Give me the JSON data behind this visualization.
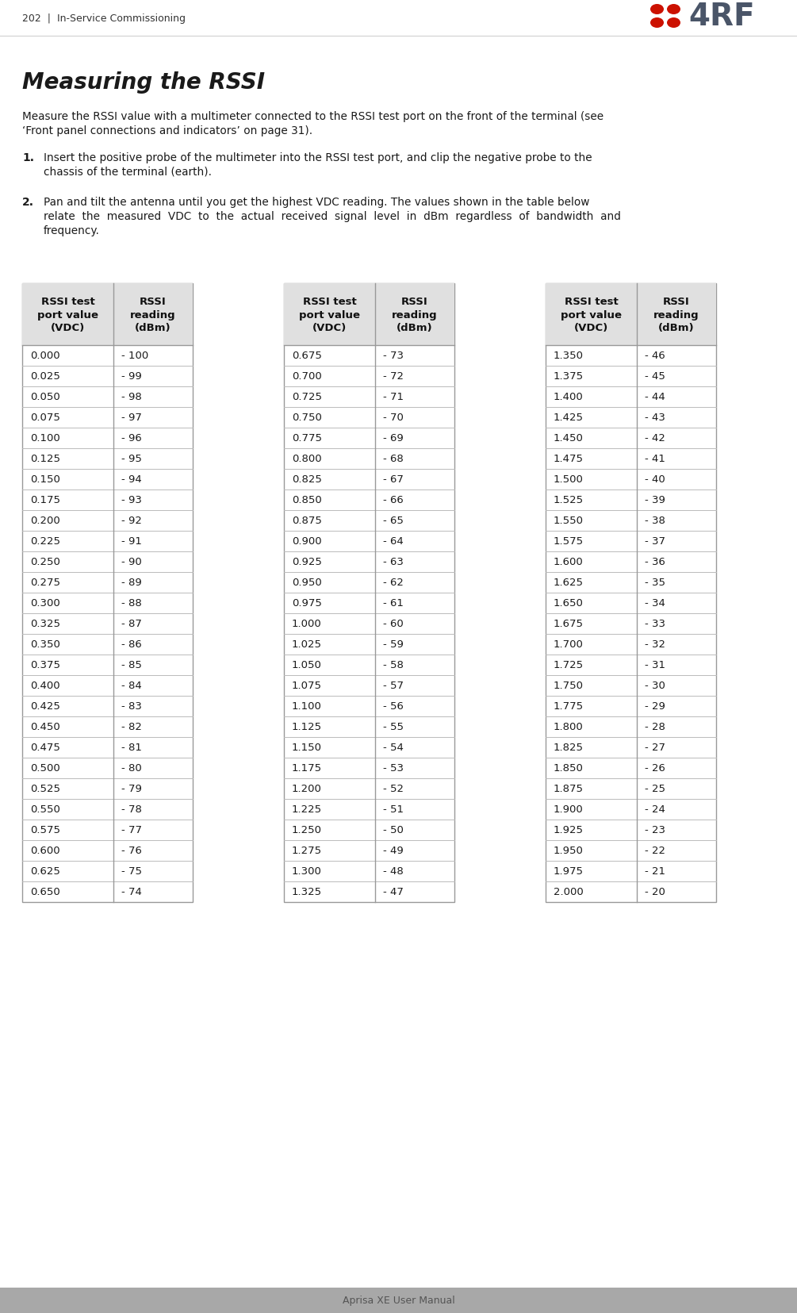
{
  "page_header_left": "202  |  In-Service Commissioning",
  "page_footer": "Aprisa XE User Manual",
  "section_title": "Measuring the RSSI",
  "para1_line1": "Measure the RSSI value with a multimeter connected to the RSSI test port on the front of the terminal (see",
  "para1_line2": "‘Front panel connections and indicators’ on page 31).",
  "list1_num": "1.",
  "list1_line1": "Insert the positive probe of the multimeter into the RSSI test port, and clip the negative probe to the",
  "list1_line2": "chassis of the terminal (earth).",
  "list2_num": "2.",
  "list2_line1": "Pan and tilt the antenna until you get the highest VDC reading. The values shown in the table below",
  "list2_line2": "relate  the  measured  VDC  to  the  actual  received  signal  level  in  dBm  regardless  of  bandwidth  and",
  "list2_line3": "frequency.",
  "col_header1": "RSSI test\nport value\n(VDC)",
  "col_header2": "RSSI\nreading\n(dBm)",
  "table1_vdc": [
    "0.000",
    "0.025",
    "0.050",
    "0.075",
    "0.100",
    "0.125",
    "0.150",
    "0.175",
    "0.200",
    "0.225",
    "0.250",
    "0.275",
    "0.300",
    "0.325",
    "0.350",
    "0.375",
    "0.400",
    "0.425",
    "0.450",
    "0.475",
    "0.500",
    "0.525",
    "0.550",
    "0.575",
    "0.600",
    "0.625",
    "0.650"
  ],
  "table1_dbm": [
    "- 100",
    "- 99",
    "- 98",
    "- 97",
    "- 96",
    "- 95",
    "- 94",
    "- 93",
    "- 92",
    "- 91",
    "- 90",
    "- 89",
    "- 88",
    "- 87",
    "- 86",
    "- 85",
    "- 84",
    "- 83",
    "- 82",
    "- 81",
    "- 80",
    "- 79",
    "- 78",
    "- 77",
    "- 76",
    "- 75",
    "- 74"
  ],
  "table2_vdc": [
    "0.675",
    "0.700",
    "0.725",
    "0.750",
    "0.775",
    "0.800",
    "0.825",
    "0.850",
    "0.875",
    "0.900",
    "0.925",
    "0.950",
    "0.975",
    "1.000",
    "1.025",
    "1.050",
    "1.075",
    "1.100",
    "1.125",
    "1.150",
    "1.175",
    "1.200",
    "1.225",
    "1.250",
    "1.275",
    "1.300",
    "1.325"
  ],
  "table2_dbm": [
    "- 73",
    "- 72",
    "- 71",
    "- 70",
    "- 69",
    "- 68",
    "- 67",
    "- 66",
    "- 65",
    "- 64",
    "- 63",
    "- 62",
    "- 61",
    "- 60",
    "- 59",
    "- 58",
    "- 57",
    "- 56",
    "- 55",
    "- 54",
    "- 53",
    "- 52",
    "- 51",
    "- 50",
    "- 49",
    "- 48",
    "- 47"
  ],
  "table3_vdc": [
    "1.350",
    "1.375",
    "1.400",
    "1.425",
    "1.450",
    "1.475",
    "1.500",
    "1.525",
    "1.550",
    "1.575",
    "1.600",
    "1.625",
    "1.650",
    "1.675",
    "1.700",
    "1.725",
    "1.750",
    "1.775",
    "1.800",
    "1.825",
    "1.850",
    "1.875",
    "1.900",
    "1.925",
    "1.950",
    "1.975",
    "2.000"
  ],
  "table3_dbm": [
    "- 46",
    "- 45",
    "- 44",
    "- 43",
    "- 42",
    "- 41",
    "- 40",
    "- 39",
    "- 38",
    "- 37",
    "- 36",
    "- 35",
    "- 34",
    "- 33",
    "- 32",
    "- 31",
    "- 30",
    "- 29",
    "- 28",
    "- 27",
    "- 26",
    "- 25",
    "- 24",
    "- 23",
    "- 22",
    "- 21",
    "- 20"
  ],
  "bg_color": "#ffffff",
  "text_color": "#1a1a1a",
  "footer_bg": "#a8a8a8",
  "footer_text_color": "#555555",
  "logo_red": "#cc1100",
  "logo_dark": "#4a5568",
  "table_border": "#999999",
  "table_row_line": "#bbbbbb",
  "header_bg": "#e0e0e0"
}
